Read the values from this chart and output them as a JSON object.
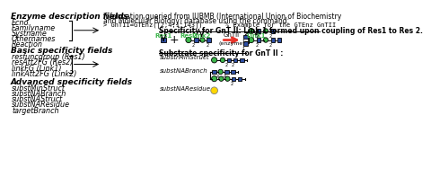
{
  "title": "",
  "bg_color": "#ffffff",
  "left_col": {
    "section1_title": "Enzyme description fields",
    "section1_items": [
      "Ecno",
      "Familyname",
      "Systname",
      "Othernames",
      "Reaction"
    ],
    "section2_title": "Basic specificity fields",
    "section2_items": [
      "resfuncgroup (Res1)",
      "resAtt2FG (Res2)",
      "linkFG (Link1)",
      "linkAtt2FG (Link2)"
    ],
    "section3_title": "Advanced specificity fields",
    "section3_items": [
      "substMinStruct",
      "substNABranch",
      "substNAStruct",
      "substNAResidue",
      "targetBranch"
    ]
  },
  "top_right_text1": "Information queried from IUBMB (International Union of Biochemistry",
  "top_right_text2": "and Molecular Biology) database using the command:",
  "top_right_code": "> GnTII=GTEnz([2;4;1;143])      % Example for the GTEnz GnTII",
  "specificity_title": "Specificity for GnT II: Link 1 formed upon coupling of Res1 to Res 2.",
  "substrate_title": "Substrate specificity for GnT II :",
  "colors": {
    "green": "#3cb54a",
    "blue": "#2e4fa3",
    "yellow": "#ffd700",
    "arrow_red": "#e8342a",
    "text_dark": "#000000"
  }
}
